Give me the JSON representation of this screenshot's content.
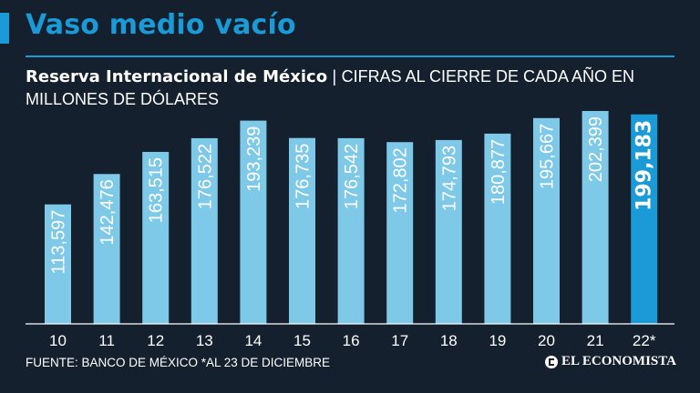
{
  "header": {
    "title": "Vaso medio vacío",
    "subtitle_bold": "Reserva Internacional de México",
    "subtitle_sep": "|",
    "subtitle_light": "CIFRAS AL CIERRE DE CADA AÑO EN MILLONES DE DÓLARES"
  },
  "footer": {
    "source": "FUENTE: BANCO DE MÉXICO *AL 23 DE DICIEMBRE",
    "brand": "EL ECONOMISTA"
  },
  "colors": {
    "background": "#14202e",
    "accent": "#1a9bd7",
    "bar": "#7ec8e8",
    "bar_highlight": "#1a9bd7"
  },
  "chart_data": {
    "type": "bar",
    "title": "Reserva Internacional de México",
    "xlabel": "",
    "ylabel": "",
    "categories": [
      "10",
      "11",
      "12",
      "13",
      "14",
      "15",
      "16",
      "17",
      "18",
      "19",
      "20",
      "21",
      "22*"
    ],
    "values": [
      113597,
      142476,
      163515,
      176522,
      193239,
      176735,
      176542,
      172802,
      174793,
      180877,
      195667,
      202399,
      199183
    ],
    "labels": [
      "113,597",
      "142,476",
      "163,515",
      "176,522",
      "193,239",
      "176,735",
      "176,542",
      "172,802",
      "174,793",
      "180,877",
      "195,667",
      "202,399",
      "199,183"
    ],
    "highlight_index": 12,
    "ylim": [
      0,
      202399
    ],
    "grid": false
  }
}
